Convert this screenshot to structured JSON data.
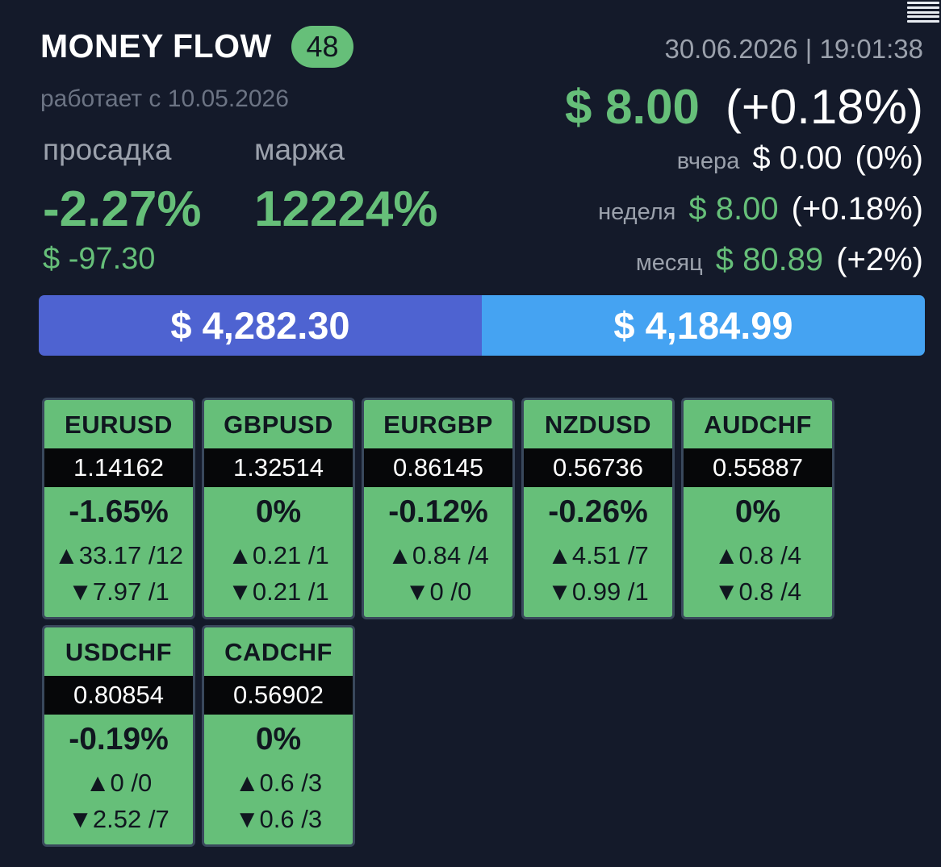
{
  "header": {
    "title": "MONEY FLOW",
    "badge": "48",
    "since": "работает с 10.05.2026",
    "datetime": "30.06.2026 | 19:01:38"
  },
  "stats": {
    "drawdown_label": "просадка",
    "margin_label": "маржа",
    "drawdown_pct": "-2.27%",
    "margin_pct": "12224%",
    "drawdown_usd": "$ -97.30"
  },
  "profit": {
    "today_usd": "$ 8.00",
    "today_pct": "(+0.18%)",
    "yesterday_label": "вчера",
    "yesterday_usd": "$ 0.00",
    "yesterday_pct": "(0%)",
    "week_label": "неделя",
    "week_usd": "$ 8.00",
    "week_pct": "(+0.18%)",
    "month_label": "месяц",
    "month_usd": "$ 80.89",
    "month_pct": "(+2%)"
  },
  "balance": {
    "left": "$ 4,282.30",
    "right": "$ 4,184.99"
  },
  "colors": {
    "background": "#141a2a",
    "green": "#66bf79",
    "balance_left": "#4e63d1",
    "balance_right": "#45a3f2"
  },
  "pairs": [
    {
      "name": "EURUSD",
      "price": "1.14162",
      "change": "-1.65%",
      "up": "▲33.17 /12",
      "down": "▼7.97 /1"
    },
    {
      "name": "GBPUSD",
      "price": "1.32514",
      "change": "0%",
      "up": "▲0.21 /1",
      "down": "▼0.21 /1"
    },
    {
      "name": "EURGBP",
      "price": "0.86145",
      "change": "-0.12%",
      "up": "▲0.84 /4",
      "down": "▼0 /0"
    },
    {
      "name": "NZDUSD",
      "price": "0.56736",
      "change": "-0.26%",
      "up": "▲4.51 /7",
      "down": "▼0.99 /1"
    },
    {
      "name": "AUDCHF",
      "price": "0.55887",
      "change": "0%",
      "up": "▲0.8 /4",
      "down": "▼0.8 /4"
    },
    {
      "name": "USDCHF",
      "price": "0.80854",
      "change": "-0.19%",
      "up": "▲0 /0",
      "down": "▼2.52 /7"
    },
    {
      "name": "CADCHF",
      "price": "0.56902",
      "change": "0%",
      "up": "▲0.6 /3",
      "down": "▼0.6 /3"
    }
  ]
}
